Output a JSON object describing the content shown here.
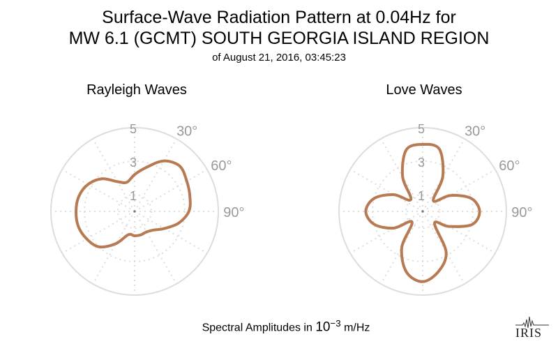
{
  "header": {
    "title_line1": "Surface-Wave Radiation Pattern at 0.04Hz for",
    "title_line2": "MW 6.1 (GCMT) SOUTH GEORGIA ISLAND REGION",
    "subtitle": "of August 21, 2016, 03:45:23"
  },
  "footer": {
    "label_prefix": "Spectral Amplitudes in ",
    "label_unit_base": "10",
    "label_unit_exp": "−3",
    "label_suffix": " m/Hz",
    "logo_text": "IRIS"
  },
  "colors": {
    "curve": "#b87a52",
    "grid": "#dddddd",
    "tick_text": "#999999"
  },
  "chart_data": [
    {
      "type": "polar-line",
      "title": "Rayleigh Waves",
      "radial_ticks": [
        "1",
        "3",
        "5"
      ],
      "radial_values": [
        1,
        3,
        5
      ],
      "radial_range": [
        0,
        5
      ],
      "angle_tick_labels": [
        "30°",
        "60°",
        "90°"
      ],
      "angle_tick_values_deg": [
        30,
        60,
        90
      ],
      "spoke_angles_deg": [
        0,
        30,
        60,
        90,
        120,
        150,
        180,
        210,
        240,
        270,
        300,
        330
      ],
      "pattern": {
        "azimuth_deg": [
          0,
          15,
          30,
          45,
          60,
          75,
          90,
          105,
          120,
          135,
          150,
          165,
          180,
          195,
          210,
          225,
          240,
          255,
          270,
          285,
          300,
          315,
          330,
          345
        ],
        "amplitude": [
          2.2,
          2.72,
          3.48,
          3.82,
          3.6,
          3.42,
          3.24,
          2.72,
          2.05,
          1.58,
          1.42,
          1.45,
          1.46,
          1.44,
          2.22,
          3.0,
          3.3,
          3.48,
          3.5,
          3.45,
          3.22,
          2.75,
          2.05,
          1.8
        ]
      }
    },
    {
      "type": "polar-line",
      "title": "Love Waves",
      "radial_ticks": [
        "1",
        "3",
        "5"
      ],
      "radial_values": [
        1,
        3,
        5
      ],
      "radial_range": [
        0,
        5
      ],
      "angle_tick_labels": [
        "30°",
        "60°",
        "90°"
      ],
      "angle_tick_values_deg": [
        30,
        60,
        90
      ],
      "spoke_angles_deg": [
        0,
        30,
        60,
        90,
        120,
        150,
        180,
        210,
        240,
        270,
        300,
        330
      ],
      "pattern": {
        "azimuth_deg": [
          0,
          15,
          30,
          45,
          60,
          75,
          90,
          105,
          120,
          135,
          150,
          165,
          180,
          195,
          210,
          225,
          240,
          255,
          270,
          285,
          300,
          315,
          330,
          345
        ],
        "amplitude": [
          4.0,
          3.85,
          2.4,
          0.9,
          1.9,
          3.0,
          3.4,
          3.05,
          1.8,
          1.0,
          2.8,
          3.7,
          4.2,
          3.75,
          2.5,
          0.9,
          2.0,
          3.0,
          3.4,
          3.0,
          2.0,
          1.0,
          2.4,
          3.8
        ]
      }
    }
  ]
}
